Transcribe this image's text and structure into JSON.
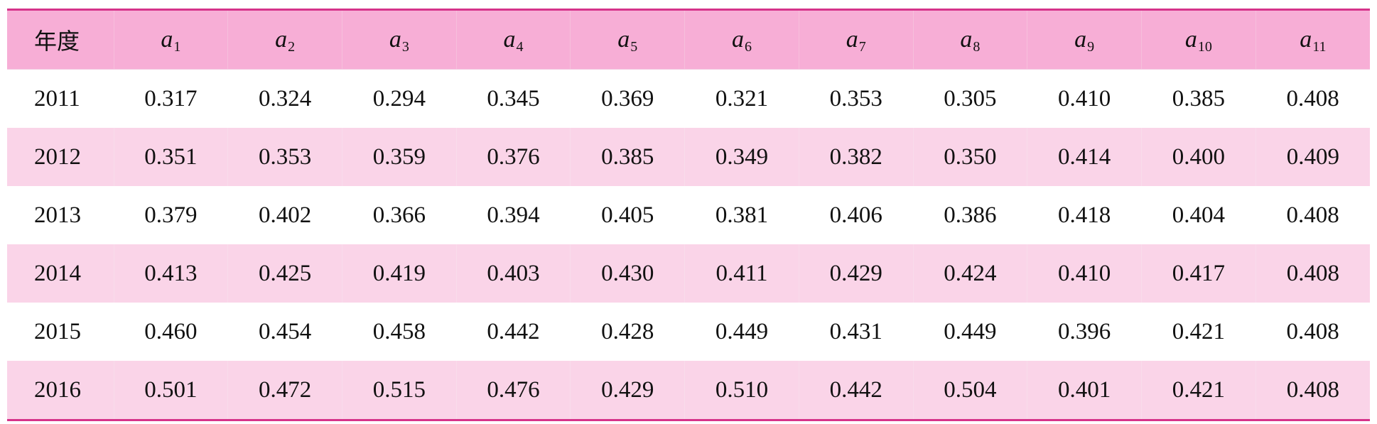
{
  "table": {
    "header": {
      "year": "年度",
      "var": "a",
      "subscripts": [
        "1",
        "2",
        "3",
        "4",
        "5",
        "6",
        "7",
        "8",
        "9",
        "10",
        "11"
      ]
    },
    "rows": [
      {
        "year": "2011",
        "values": [
          "0.317",
          "0.324",
          "0.294",
          "0.345",
          "0.369",
          "0.321",
          "0.353",
          "0.305",
          "0.410",
          "0.385",
          "0.408"
        ]
      },
      {
        "year": "2012",
        "values": [
          "0.351",
          "0.353",
          "0.359",
          "0.376",
          "0.385",
          "0.349",
          "0.382",
          "0.350",
          "0.414",
          "0.400",
          "0.409"
        ]
      },
      {
        "year": "2013",
        "values": [
          "0.379",
          "0.402",
          "0.366",
          "0.394",
          "0.405",
          "0.381",
          "0.406",
          "0.386",
          "0.418",
          "0.404",
          "0.408"
        ]
      },
      {
        "year": "2014",
        "values": [
          "0.413",
          "0.425",
          "0.419",
          "0.403",
          "0.430",
          "0.411",
          "0.429",
          "0.424",
          "0.410",
          "0.417",
          "0.408"
        ]
      },
      {
        "year": "2015",
        "values": [
          "0.460",
          "0.454",
          "0.458",
          "0.442",
          "0.428",
          "0.449",
          "0.431",
          "0.449",
          "0.396",
          "0.421",
          "0.408"
        ]
      },
      {
        "year": "2016",
        "values": [
          "0.501",
          "0.472",
          "0.515",
          "0.476",
          "0.429",
          "0.510",
          "0.442",
          "0.504",
          "0.401",
          "0.421",
          "0.408"
        ]
      }
    ]
  },
  "colors": {
    "rule": "#d6338a",
    "header_bg": "#f7aed6",
    "stripe_bg": "#fad4e8"
  }
}
